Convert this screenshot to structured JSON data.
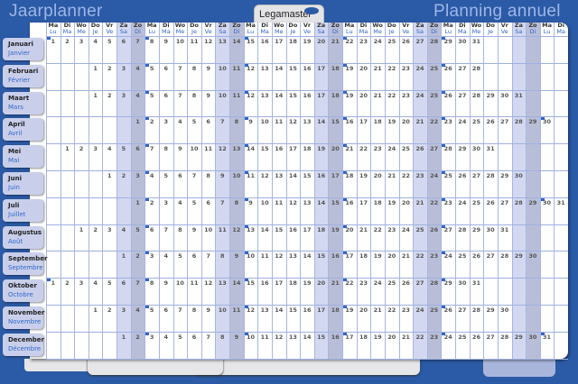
{
  "header": {
    "title_nl": "Jaarplanner",
    "title_fr": "Planning annuel",
    "brand": "Legamaster"
  },
  "colors": {
    "background": "#2b5aa6",
    "saturday": "#d3d8f0",
    "sunday": "#b9bed8",
    "accent": "#2f67c8"
  },
  "weekdays": [
    {
      "nl": "Ma",
      "fr": "Lu"
    },
    {
      "nl": "Di",
      "fr": "Ma"
    },
    {
      "nl": "Wo",
      "fr": "Me"
    },
    {
      "nl": "Do",
      "fr": "Je"
    },
    {
      "nl": "Vr",
      "fr": "Ve"
    },
    {
      "nl": "Za",
      "fr": "Sa"
    },
    {
      "nl": "Zo",
      "fr": "Di"
    }
  ],
  "months": [
    {
      "nl": "Januari",
      "fr": "Janvier",
      "first_day": "Ma",
      "days": 31
    },
    {
      "nl": "Februari",
      "fr": "Février",
      "first_day": "Do",
      "days": 28
    },
    {
      "nl": "Maart",
      "fr": "Mars",
      "first_day": "Do",
      "days": 31
    },
    {
      "nl": "April",
      "fr": "Avril",
      "first_day": "Zo",
      "days": 30
    },
    {
      "nl": "Mei",
      "fr": "Mai",
      "first_day": "Di",
      "days": 31
    },
    {
      "nl": "Juni",
      "fr": "Juin",
      "first_day": "Vr",
      "days": 30
    },
    {
      "nl": "Juli",
      "fr": "Juillet",
      "first_day": "Zo",
      "days": 31
    },
    {
      "nl": "Augustus",
      "fr": "Août",
      "first_day": "Wo",
      "days": 31
    },
    {
      "nl": "September",
      "fr": "Septembre",
      "first_day": "Za",
      "days": 30
    },
    {
      "nl": "Oktober",
      "fr": "Octobre",
      "first_day": "Ma",
      "days": 31
    },
    {
      "nl": "November",
      "fr": "Novembre",
      "first_day": "Do",
      "days": 30
    },
    {
      "nl": "December",
      "fr": "Décembre",
      "first_day": "Za",
      "days": 31
    }
  ]
}
